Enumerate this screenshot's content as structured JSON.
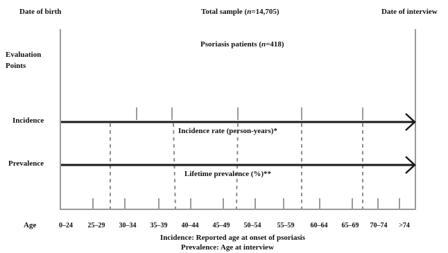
{
  "header": {
    "date_of_birth": "Date of birth",
    "total_sample_prefix": "Total sample (",
    "total_sample_n": "n",
    "total_sample_suffix": "=14,705)",
    "date_of_interview": "Date of interview"
  },
  "left_labels": {
    "evaluation_points_line1": "Evaluation",
    "evaluation_points_line2": "Points",
    "incidence": "Incidence",
    "prevalence": "Prevalence",
    "age": "Age"
  },
  "psoriasis": {
    "prefix": "Psoriasis patients (",
    "n": "n",
    "suffix": "=418)"
  },
  "arrows": {
    "incidence_rate": "Incidence rate (person-years)*",
    "lifetime_prevalence": "Lifetime prevalence (%)**"
  },
  "age_groups": [
    "0–24",
    "25–29",
    "30–34",
    "35–39",
    "40–44",
    "45–49",
    "50–54",
    "55–59",
    "60–64",
    "65–69",
    "70–74",
    ">74"
  ],
  "footnotes": {
    "incidence": "Incidence: Reported age at onset of psoriasis",
    "prevalence": "Prevalence: Age at interview"
  },
  "colors": {
    "axis_gray": "#9a9a9a",
    "arrow": "#1a1a1a",
    "dashed": "#8c8c8c"
  }
}
